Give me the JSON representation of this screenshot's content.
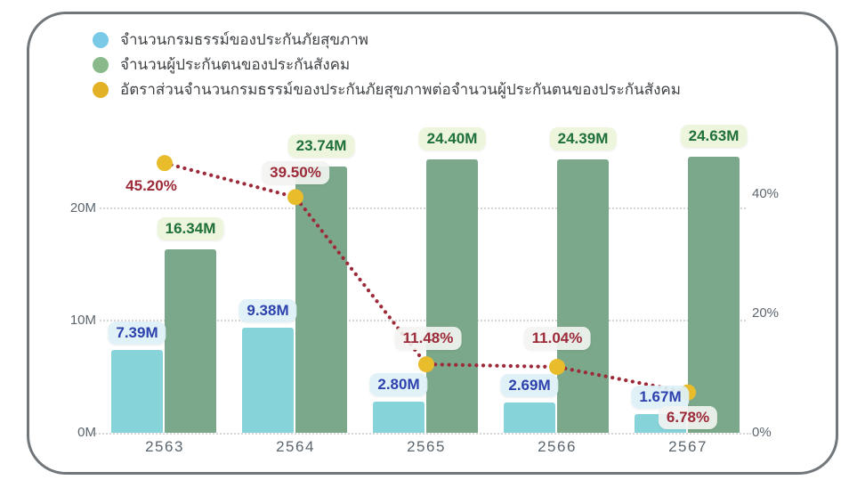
{
  "colors": {
    "bar_health": "#86d4da",
    "bar_social": "#7ba88a",
    "legend_health": "#79c9e7",
    "legend_social": "#8aba8c",
    "legend_ratio": "#e3b125",
    "line": "#9c2a39",
    "marker": "#e8bc2b",
    "label_health_text": "#2e42ae",
    "label_health_bg": "rgba(222,241,247,0.93)",
    "label_social_text": "#1f7038",
    "label_social_bg": "rgba(236,244,218,0.95)",
    "label_ratio_text": "#9c2a39",
    "label_ratio_bg": "rgba(243,244,241,0.9)",
    "axis_text": "#5c666f",
    "gridline": "#d6d6d6",
    "card_border": "#71767b"
  },
  "legend": {
    "items": [
      {
        "label": "จำนวนกรมธรรม์ของประกันภัยสุขภาพ"
      },
      {
        "label": "จำนวนผู้ประกันตนของประกันสังคม"
      },
      {
        "label": "อัตราส่วนจำนวนกรมธรรม์ของประกันภัยสุขภาพต่อจำนวนผู้ประกันตนของประกันสังคม"
      }
    ]
  },
  "chart_data": {
    "type": "combo-bar-line",
    "categories": [
      "2563",
      "2564",
      "2565",
      "2566",
      "2567"
    ],
    "series": [
      {
        "name": "จำนวนกรมธรรม์ของประกันภัยสุขภาพ",
        "type": "bar",
        "axis": "left",
        "unit": "M",
        "values": [
          7.39,
          9.38,
          2.8,
          2.69,
          1.67
        ],
        "labels": [
          "7.39M",
          "9.38M",
          "2.80M",
          "2.69M",
          "1.67M"
        ]
      },
      {
        "name": "จำนวนผู้ประกันตนของประกันสังคม",
        "type": "bar",
        "axis": "left",
        "unit": "M",
        "values": [
          16.34,
          23.74,
          24.4,
          24.39,
          24.63
        ],
        "labels": [
          "16.34M",
          "23.74M",
          "24.40M",
          "24.39M",
          "24.63M"
        ]
      },
      {
        "name": "อัตราส่วนจำนวนกรมธรรม์ของประกันภัยสุขภาพต่อจำนวนผู้ประกันตนของประกันสังคม",
        "type": "line",
        "axis": "right",
        "unit": "%",
        "values": [
          45.2,
          39.5,
          11.48,
          11.04,
          6.78
        ],
        "labels": [
          "45.20%",
          "39.50%",
          "11.48%",
          "11.04%",
          "6.78%"
        ]
      }
    ],
    "y_left": {
      "ticks": [
        {
          "label": "0M",
          "value": 0
        },
        {
          "label": "10M",
          "value": 10
        },
        {
          "label": "20M",
          "value": 20
        }
      ]
    },
    "y_right": {
      "ticks": [
        {
          "label": "0%",
          "value": 0
        },
        {
          "label": "20%",
          "value": 20
        },
        {
          "label": "40%",
          "value": 40
        }
      ]
    },
    "legend_position": "top-left",
    "grid": "horizontal-dotted"
  }
}
